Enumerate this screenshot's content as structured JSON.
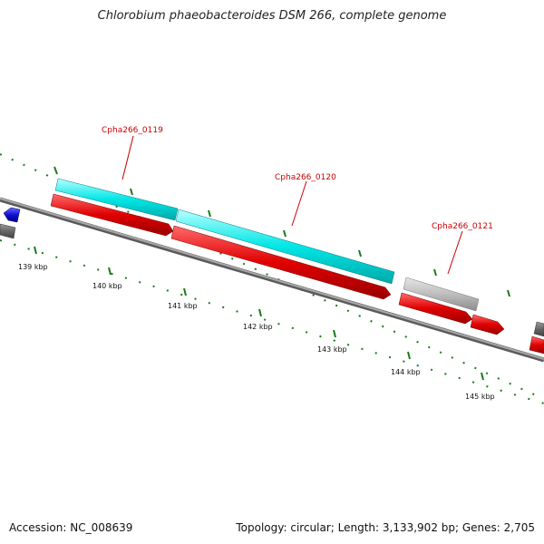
{
  "title": "Chlorobium phaeobacteroides DSM 266, complete genome",
  "footer": {
    "accession": "Accession: NC_008639",
    "summary": "Topology: circular; Length: 3,133,902 bp; Genes: 2,705"
  },
  "ticks": [
    "139 kbp",
    "140 kbp",
    "141 kbp",
    "142 kbp",
    "143 kbp",
    "144 kbp",
    "145 kbp"
  ],
  "gene_labels": [
    "Cpha266_0119",
    "Cpha266_0120",
    "Cpha266_0121"
  ],
  "colors": {
    "cds": "#e00000",
    "gene_cyan": "#00e6e6",
    "gene_gray": "#b8b8b8",
    "backbone": "#8a8a8a",
    "tick": "#1a7a1a",
    "label": "#cc0000",
    "other_feature_blue": "#1010d0"
  }
}
